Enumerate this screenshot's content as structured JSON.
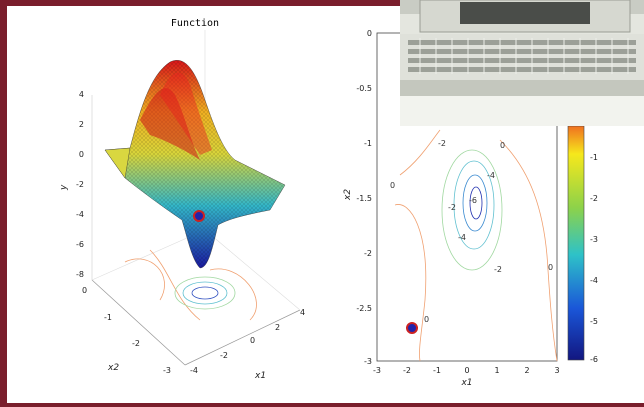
{
  "surface_plot": {
    "title": "Function",
    "zlabel": "y",
    "xlabel": "x1",
    "ylabel": "x2",
    "z_ticks": [
      "4",
      "2",
      "0",
      "-2",
      "-4",
      "-6",
      "-8"
    ],
    "x1_ticks": [
      "4",
      "2",
      "0",
      "-2",
      "-4"
    ],
    "x2_ticks": [
      "0",
      "-1",
      "-2",
      "-3"
    ]
  },
  "contour_plot": {
    "xlabel": "x1",
    "ylabel": "x2",
    "y_ticks": [
      "0",
      "-0.5",
      "-1",
      "-1.5",
      "-2",
      "-2.5",
      "-3"
    ],
    "x_ticks": [
      "-3",
      "-2",
      "-1",
      "0",
      "1",
      "2",
      "3"
    ],
    "contour_labels": [
      "-2",
      "0",
      "0",
      "-2",
      "-4",
      "-6",
      "-4",
      "-2",
      "0",
      "0"
    ],
    "colorbar_ticks": [
      "-1",
      "-2",
      "-3",
      "-4",
      "-5",
      "-6"
    ]
  },
  "colors": {
    "frame": "#7a1e2c",
    "marker_fill": "#2222aa",
    "marker_edge": "#cc2222"
  }
}
